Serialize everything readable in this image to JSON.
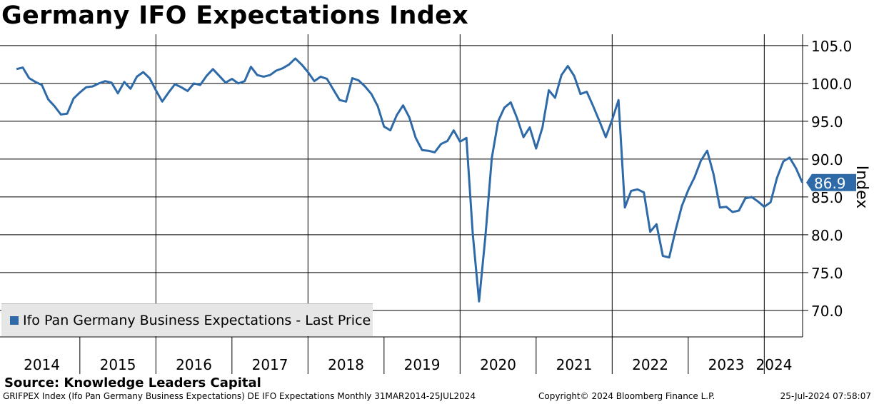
{
  "title": "Germany IFO Expectations Index",
  "source": "Source: Knowledge Leaders Capital",
  "footer": {
    "left": "GRIFPEX Index (Ifo Pan Germany Business Expectations) DE IFO Expectations  Monthly 31MAR2014-25JUL2024",
    "middle": "Copyright© 2024 Bloomberg Finance L.P.",
    "right": "25-Jul-2024 07:58:07"
  },
  "legend": {
    "label": "Ifo Pan Germany Business Expectations - Last Price"
  },
  "colors": {
    "series": "#2e6aa8",
    "grid": "#000000",
    "legend_bg": "#e6e6e6"
  },
  "chart_data": {
    "type": "line",
    "title": "Germany IFO Expectations Index",
    "ylabel": "Index",
    "xlabel": "",
    "ylim": [
      66.5,
      106.5
    ],
    "yticks": [
      70.0,
      75.0,
      80.0,
      85.0,
      90.0,
      95.0,
      100.0,
      105.0
    ],
    "ytick_labels": [
      "70.0",
      "75.0",
      "80.0",
      "85.0",
      "90.0",
      "95.0",
      "100.0",
      "105.0"
    ],
    "x_start": "2014-03",
    "x_end": "2024-07",
    "year_labels": [
      "2014",
      "2015",
      "2016",
      "2017",
      "2018",
      "2019",
      "2020",
      "2021",
      "2022",
      "2023",
      "2024"
    ],
    "last_value_label": "86.9",
    "grid": true,
    "series": [
      {
        "name": "Ifo Pan Germany Business Expectations - Last Price",
        "start": "2014-03",
        "values": [
          101.9,
          102.1,
          100.7,
          100.2,
          99.8,
          97.9,
          97.0,
          95.9,
          96.0,
          98.0,
          98.8,
          99.5,
          99.6,
          100.0,
          100.3,
          100.1,
          98.7,
          100.2,
          99.3,
          100.9,
          101.5,
          100.7,
          99.1,
          97.6,
          98.8,
          99.9,
          99.5,
          99.0,
          100.0,
          99.8,
          101.0,
          101.9,
          101.0,
          100.1,
          100.6,
          100.0,
          100.3,
          102.2,
          101.1,
          100.9,
          101.1,
          101.7,
          102.0,
          102.5,
          103.3,
          102.5,
          101.5,
          100.3,
          100.9,
          100.6,
          99.2,
          97.8,
          97.6,
          100.7,
          100.4,
          99.6,
          98.6,
          97.0,
          94.3,
          93.8,
          95.8,
          97.1,
          95.5,
          92.8,
          91.2,
          91.1,
          90.9,
          92.0,
          92.4,
          93.8,
          92.3,
          92.8,
          80.1,
          71.2,
          79.8,
          90.1,
          95.0,
          96.8,
          97.5,
          95.4,
          92.9,
          94.2,
          91.4,
          94.2,
          99.1,
          98.1,
          101.1,
          102.3,
          101.0,
          98.6,
          98.9,
          97.0,
          95.0,
          92.9,
          95.2,
          97.8,
          83.6,
          85.8,
          86.0,
          85.6,
          80.4,
          81.4,
          77.2,
          77.0,
          80.6,
          83.8,
          85.9,
          87.6,
          89.8,
          91.1,
          88.0,
          83.6,
          83.7,
          83.0,
          83.2,
          84.8,
          85.0,
          84.4,
          83.7,
          84.3,
          87.5,
          89.7,
          90.2,
          88.8,
          86.9
        ]
      }
    ]
  }
}
